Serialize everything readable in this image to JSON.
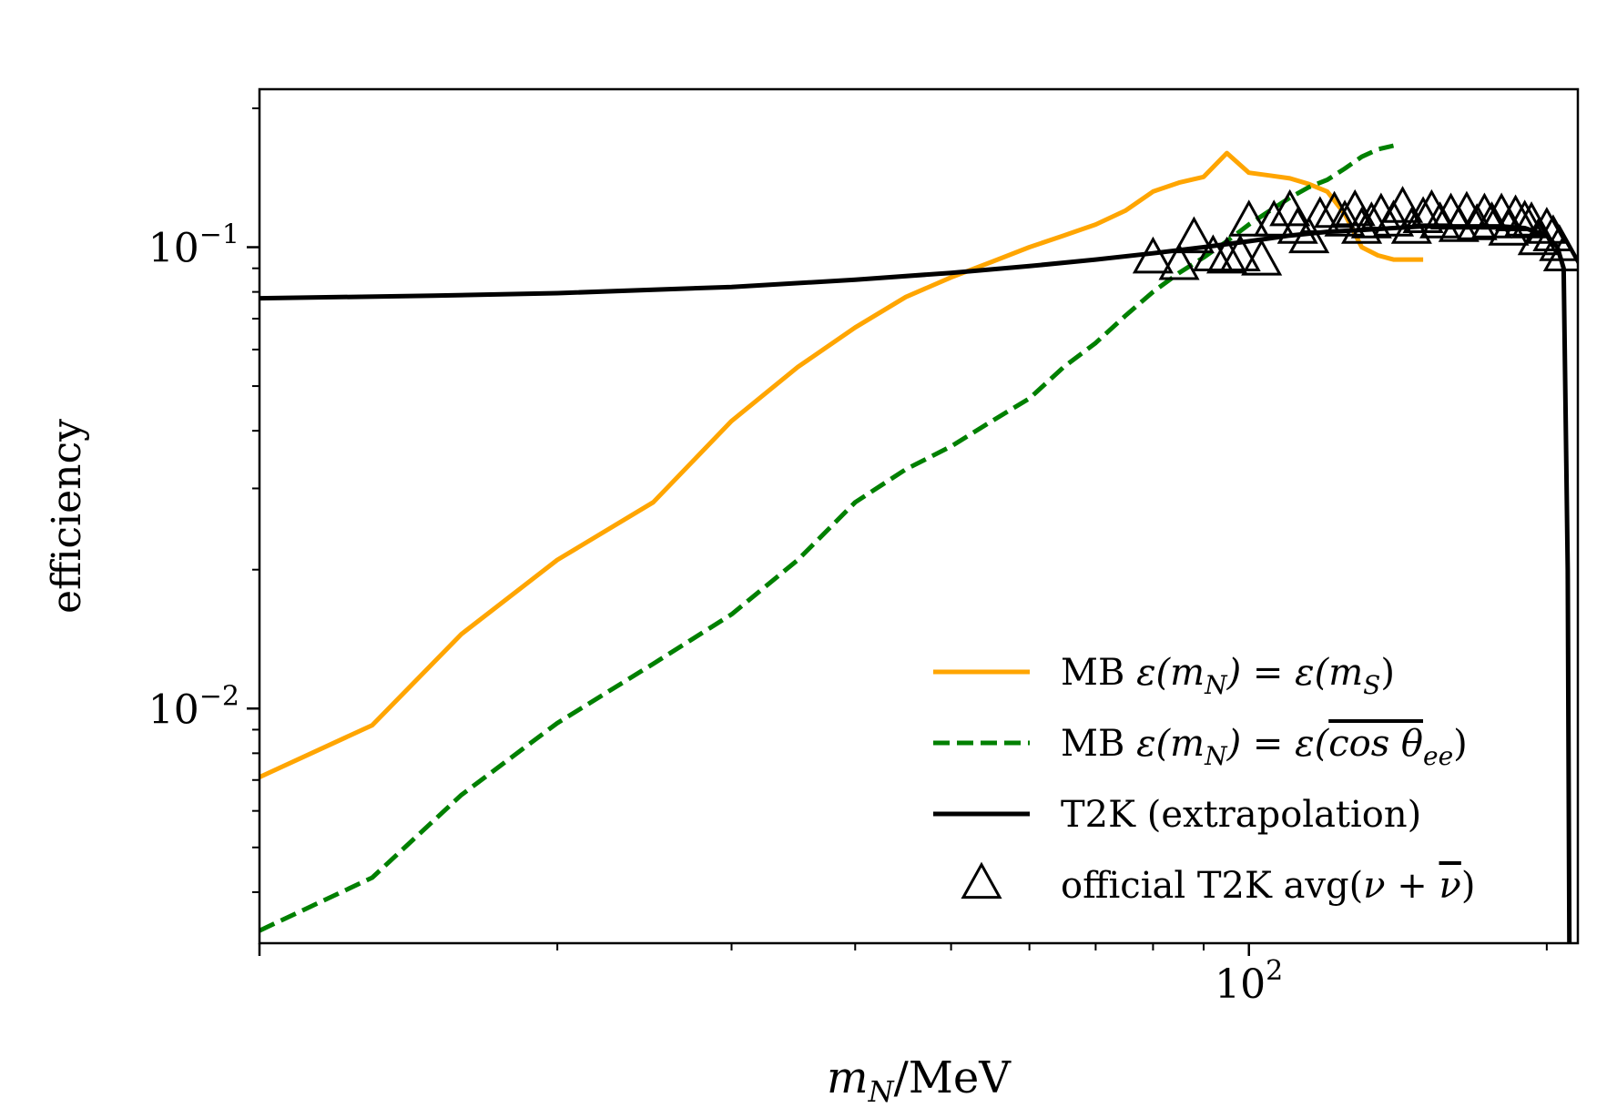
{
  "chart_data": {
    "type": "line",
    "title": "",
    "xlabel": "m_N/MeV",
    "ylabel": "efficiency",
    "x_scale": "log",
    "y_scale": "log",
    "xlim": [
      10,
      215
    ],
    "ylim": [
      0.0031,
      0.22
    ],
    "x_tick_labels": [
      {
        "value": 100,
        "base": "10",
        "exp": "2"
      }
    ],
    "y_tick_labels": [
      {
        "value": 0.1,
        "base": "10",
        "exp": "−1"
      },
      {
        "value": 0.01,
        "base": "10",
        "exp": "−2"
      }
    ],
    "grid": false,
    "legend_position": "lower-right",
    "series": [
      {
        "name": "MB ε(m_N) = ε(m_S)",
        "label_parts": {
          "pre": "MB ",
          "math": "ε(m",
          "sub": "N",
          "mid": ") = ε(m",
          "sub2": "S",
          "post": ")"
        },
        "color": "#FFA500",
        "style": "solid",
        "x": [
          10,
          13,
          16,
          20,
          25,
          30,
          35,
          40,
          45,
          50,
          55,
          60,
          65,
          70,
          75,
          80,
          85,
          90,
          95,
          100,
          105,
          110,
          115,
          120,
          125,
          130,
          135,
          140,
          145,
          150
        ],
        "y": [
          0.0071,
          0.0092,
          0.0145,
          0.021,
          0.028,
          0.042,
          0.055,
          0.067,
          0.078,
          0.086,
          0.093,
          0.1,
          0.106,
          0.112,
          0.12,
          0.132,
          0.138,
          0.142,
          0.16,
          0.145,
          0.143,
          0.141,
          0.137,
          0.132,
          0.118,
          0.1,
          0.096,
          0.094,
          0.094,
          0.094
        ]
      },
      {
        "name": "MB ε(m_N) = ε(cos θ_ee)",
        "label_parts": {
          "pre": "MB ",
          "math": "ε(m",
          "sub": "N",
          "mid": ") = ε(",
          "over": "cos θ",
          "sub2": "ee",
          "post": ")"
        },
        "color": "#008000",
        "style": "dashed",
        "x": [
          10,
          13,
          16,
          20,
          25,
          30,
          35,
          40,
          45,
          50,
          55,
          60,
          65,
          70,
          75,
          80,
          85,
          90,
          95,
          100,
          105,
          110,
          115,
          120,
          125,
          130,
          135,
          140
        ],
        "y": [
          0.0033,
          0.0043,
          0.0065,
          0.0093,
          0.0125,
          0.016,
          0.021,
          0.028,
          0.033,
          0.037,
          0.042,
          0.047,
          0.055,
          0.062,
          0.071,
          0.08,
          0.088,
          0.095,
          0.103,
          0.112,
          0.12,
          0.128,
          0.135,
          0.14,
          0.148,
          0.157,
          0.163,
          0.166
        ]
      },
      {
        "name": "T2K (extrapolation)",
        "label_parts": {
          "pre": "T2K (extrapolation)"
        },
        "color": "#000000",
        "style": "solid",
        "x": [
          10,
          15,
          20,
          30,
          40,
          50,
          60,
          70,
          80,
          90,
          100,
          110,
          120,
          130,
          140,
          150,
          160,
          170,
          180,
          190,
          200,
          205,
          208,
          210,
          211
        ],
        "y": [
          0.0775,
          0.0785,
          0.0795,
          0.082,
          0.085,
          0.088,
          0.091,
          0.094,
          0.097,
          0.1,
          0.103,
          0.106,
          0.108,
          0.109,
          0.11,
          0.111,
          0.111,
          0.111,
          0.111,
          0.11,
          0.106,
          0.1,
          0.09,
          0.02,
          0.002
        ]
      },
      {
        "name": "official T2K avg(ν + ν̄)",
        "label_parts": {
          "pre": "official T2K avg(",
          "math": "ν + ",
          "over": "ν",
          "post": ")"
        },
        "color": "#000000",
        "style": "markers",
        "marker": "triangle",
        "x": [
          80,
          85,
          88,
          92,
          95,
          98,
          100,
          103,
          106,
          110,
          112,
          115,
          118,
          122,
          125,
          128,
          130,
          133,
          136,
          140,
          143,
          146,
          150,
          153,
          156,
          160,
          163,
          166,
          170,
          173,
          176,
          180,
          183,
          186,
          190,
          193,
          196,
          200,
          203,
          206,
          208
        ],
        "y": [
          0.094,
          0.091,
          0.104,
          0.095,
          0.094,
          0.095,
          0.113,
          0.093,
          0.113,
          0.119,
          0.109,
          0.104,
          0.115,
          0.118,
          0.113,
          0.119,
          0.109,
          0.112,
          0.117,
          0.113,
          0.121,
          0.109,
          0.115,
          0.119,
          0.112,
          0.117,
          0.11,
          0.118,
          0.111,
          0.117,
          0.112,
          0.117,
          0.108,
          0.116,
          0.113,
          0.112,
          0.103,
          0.109,
          0.105,
          0.1,
          0.095
        ]
      }
    ]
  }
}
